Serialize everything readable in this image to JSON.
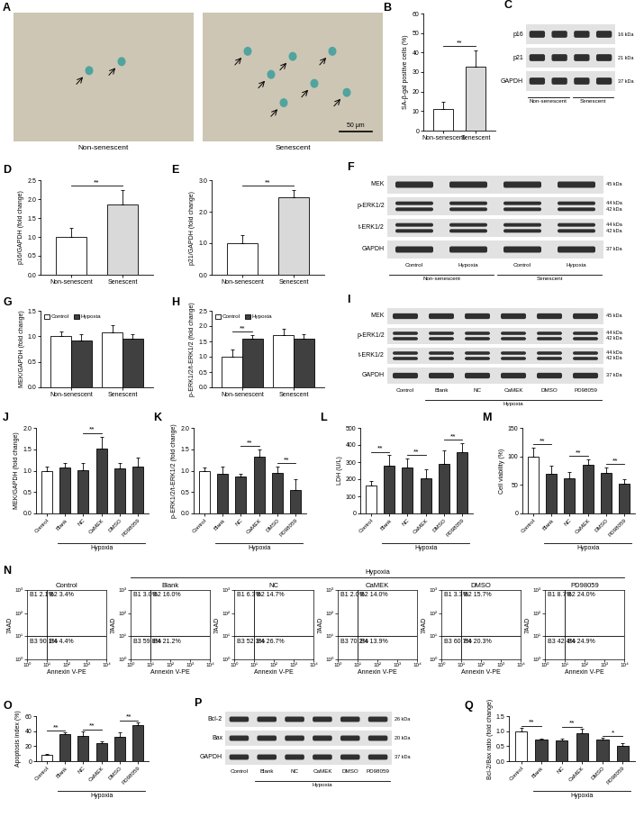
{
  "chart_data": [
    {
      "panel": "B",
      "type": "bar",
      "y_label": "SA-β-gal positive cells (%)",
      "categories": [
        "Non-senescent",
        "Senescent"
      ],
      "values": [
        11,
        33
      ],
      "errors": [
        4,
        8
      ],
      "colors": [
        "#ffffff",
        "#d9d9d9"
      ],
      "ylim": [
        0,
        60
      ],
      "yticks": [
        0,
        10,
        20,
        30,
        40,
        50,
        60
      ],
      "significance": [
        {
          "from": 0,
          "to": 1,
          "label": "**"
        }
      ]
    },
    {
      "panel": "D",
      "type": "bar",
      "y_label": "p16/GAPDH (fold change)",
      "categories": [
        "Non-senescent",
        "Senescent"
      ],
      "values": [
        1.0,
        1.85
      ],
      "errors": [
        0.25,
        0.4
      ],
      "colors": [
        "#ffffff",
        "#d9d9d9"
      ],
      "ylim": [
        0,
        2.5
      ],
      "yticks": [
        {
          "value": 0,
          "label": "0.0"
        },
        0.5,
        {
          "value": 1,
          "label": "1.0"
        },
        1.5,
        {
          "value": 2,
          "label": "2.0"
        },
        2.5
      ],
      "significance": [
        {
          "from": 0,
          "to": 1,
          "label": "**"
        }
      ]
    },
    {
      "panel": "E",
      "type": "bar",
      "y_label": "p21/GAPDH (fold change)",
      "categories": [
        "Non-senescent",
        "Senescent"
      ],
      "values": [
        1.0,
        2.45
      ],
      "errors": [
        0.25,
        0.25
      ],
      "colors": [
        "#ffffff",
        "#d9d9d9"
      ],
      "ylim": [
        0,
        3
      ],
      "yticks": [
        {
          "value": 0,
          "label": "0.0"
        },
        {
          "value": 1,
          "label": "1.0"
        },
        {
          "value": 2,
          "label": "2.0"
        },
        {
          "value": 3,
          "label": "3.0"
        }
      ],
      "significance": [
        {
          "from": 0,
          "to": 1,
          "label": "**"
        }
      ]
    },
    {
      "panel": "G",
      "type": "bar",
      "y_label": "MEK/GAPDH (fold change)",
      "categories": [
        "Non-senescent",
        "Senescent"
      ],
      "series": [
        {
          "name": "Control",
          "color": "#ffffff",
          "values": [
            1.0,
            1.07
          ],
          "errors": [
            0.1,
            0.15
          ]
        },
        {
          "name": "Hypoxia",
          "color": "#404040",
          "values": [
            0.92,
            0.95
          ],
          "errors": [
            0.12,
            0.1
          ]
        }
      ],
      "legend": "upper left",
      "ylim": [
        0,
        1.5
      ],
      "yticks": [
        {
          "value": 0,
          "label": "0.0"
        },
        0.5,
        {
          "value": 1,
          "label": "1.0"
        },
        1.5
      ]
    },
    {
      "panel": "H",
      "type": "bar",
      "y_label": "p-ERK1/2/t-ERK1/2 (fold change)",
      "categories": [
        "Non-senescent",
        "Senescent"
      ],
      "series": [
        {
          "name": "Control",
          "color": "#ffffff",
          "values": [
            1.0,
            1.72
          ],
          "errors": [
            0.25,
            0.2
          ]
        },
        {
          "name": "Hypoxia",
          "color": "#404040",
          "values": [
            1.6,
            1.6
          ],
          "errors": [
            0.12,
            0.15
          ]
        }
      ],
      "legend": "upper left",
      "ylim": [
        0,
        2.5
      ],
      "yticks": [
        {
          "value": 0,
          "label": "0.0"
        },
        0.5,
        {
          "value": 1,
          "label": "1.0"
        },
        1.5,
        {
          "value": 2,
          "label": "2.0"
        },
        2.5
      ],
      "significance": [
        {
          "category": "Non-senescent",
          "label": "**"
        }
      ]
    },
    {
      "panel": "J",
      "type": "bar",
      "y_label": "MEK/GAPDH (fold change)",
      "categories": [
        "Control",
        "Blank",
        "NC",
        "CaMEK",
        "DMSO",
        "PD98059"
      ],
      "values": [
        1.0,
        1.08,
        1.02,
        1.52,
        1.05,
        1.1
      ],
      "errors": [
        0.1,
        0.1,
        0.15,
        0.28,
        0.12,
        0.2
      ],
      "colors": [
        "#ffffff",
        "#404040",
        "#404040",
        "#404040",
        "#404040",
        "#404040"
      ],
      "ylim": [
        0,
        2
      ],
      "yticks": [
        {
          "value": 0,
          "label": "0.0"
        },
        0.5,
        {
          "value": 1,
          "label": "1.0"
        },
        1.5,
        {
          "value": 2,
          "label": "2.0"
        }
      ],
      "group_label": {
        "text": "Hypoxia",
        "from": 1,
        "to": 5
      },
      "significance": [
        {
          "from": 2,
          "to": 3,
          "label": "**"
        }
      ]
    },
    {
      "panel": "K",
      "type": "bar",
      "y_label": "p-ERK1/2/t-ERK1/2 (fold change)",
      "categories": [
        "Control",
        "Blank",
        "NC",
        "CaMEK",
        "DMSO",
        "PD98059"
      ],
      "values": [
        1.0,
        0.92,
        0.86,
        1.32,
        0.95,
        0.55
      ],
      "errors": [
        0.07,
        0.18,
        0.07,
        0.18,
        0.15,
        0.25
      ],
      "colors": [
        "#ffffff",
        "#404040",
        "#404040",
        "#404040",
        "#404040",
        "#404040"
      ],
      "ylim": [
        0,
        2
      ],
      "yticks": [
        {
          "value": 0,
          "label": "0.0"
        },
        0.5,
        {
          "value": 1,
          "label": "1.0"
        },
        1.5,
        {
          "value": 2,
          "label": "2.0"
        }
      ],
      "group_label": {
        "text": "Hypoxia",
        "from": 1,
        "to": 5
      },
      "significance": [
        {
          "from": 2,
          "to": 3,
          "label": "**"
        },
        {
          "from": 4,
          "to": 5,
          "label": "**"
        }
      ]
    },
    {
      "panel": "L",
      "type": "bar",
      "y_label": "LDH (U/L)",
      "categories": [
        "Control",
        "Blank",
        "NC",
        "CaMEK",
        "DMSO",
        "PD98059"
      ],
      "values": [
        165,
        280,
        270,
        205,
        290,
        360
      ],
      "errors": [
        25,
        60,
        50,
        55,
        80,
        50
      ],
      "colors": [
        "#ffffff",
        "#404040",
        "#404040",
        "#404040",
        "#404040",
        "#404040"
      ],
      "ylim": [
        0,
        500
      ],
      "yticks": [
        0,
        100,
        200,
        300,
        400,
        500
      ],
      "group_label": {
        "text": "Hypoxia",
        "from": 1,
        "to": 5
      },
      "significance": [
        {
          "from": 0,
          "to": 1,
          "label": "**"
        },
        {
          "from": 2,
          "to": 3,
          "label": "**"
        },
        {
          "from": 4,
          "to": 5,
          "label": "**"
        }
      ]
    },
    {
      "panel": "M",
      "type": "bar",
      "y_label": "Cell viability (%)",
      "categories": [
        "Control",
        "Blank",
        "NC",
        "CaMEK",
        "DMSO",
        "PD98059"
      ],
      "values": [
        100,
        70,
        62,
        85,
        71,
        52
      ],
      "errors": [
        15,
        13,
        10,
        10,
        10,
        8
      ],
      "colors": [
        "#ffffff",
        "#404040",
        "#404040",
        "#404040",
        "#404040",
        "#404040"
      ],
      "ylim": [
        0,
        150
      ],
      "yticks": [
        0,
        50,
        100,
        150
      ],
      "group_label": {
        "text": "Hypoxia",
        "from": 1,
        "to": 5
      },
      "significance": [
        {
          "from": 0,
          "to": 1,
          "label": "**"
        },
        {
          "from": 2,
          "to": 3,
          "label": "**"
        },
        {
          "from": 4,
          "to": 5,
          "label": "**"
        }
      ]
    },
    {
      "panel": "O",
      "type": "bar",
      "y_label": "Apoptosis index (%)",
      "categories": [
        "Control",
        "Blank",
        "NC",
        "CaMEK",
        "DMSO",
        "PD98059"
      ],
      "values": [
        8,
        36,
        34,
        24,
        33,
        48
      ],
      "errors": [
        2,
        2,
        6,
        3,
        5,
        4
      ],
      "colors": [
        "#ffffff",
        "#404040",
        "#404040",
        "#404040",
        "#404040",
        "#404040"
      ],
      "ylim": [
        0,
        60
      ],
      "yticks": [
        0,
        20,
        40,
        60
      ],
      "group_label": {
        "text": "Hypoxia",
        "from": 1,
        "to": 5
      },
      "significance": [
        {
          "from": 0,
          "to": 1,
          "label": "**"
        },
        {
          "from": 2,
          "to": 3,
          "label": "**"
        },
        {
          "from": 4,
          "to": 5,
          "label": "**"
        }
      ]
    },
    {
      "panel": "Q",
      "type": "bar",
      "y_label": "Bcl-2/Bax ratio (fold change)",
      "categories": [
        "Control",
        "Blank",
        "NC",
        "CaMEK",
        "DMSO",
        "PD98059"
      ],
      "values": [
        1.0,
        0.72,
        0.68,
        0.94,
        0.72,
        0.5
      ],
      "errors": [
        0.12,
        0.03,
        0.08,
        0.15,
        0.06,
        0.1
      ],
      "colors": [
        "#ffffff",
        "#404040",
        "#404040",
        "#404040",
        "#404040",
        "#404040"
      ],
      "ylim": [
        0,
        1.5
      ],
      "yticks": [
        {
          "value": 0,
          "label": "0.0"
        },
        0.5,
        {
          "value": 1,
          "label": "1.0"
        },
        1.5
      ],
      "group_label": {
        "text": "Hypoxia",
        "from": 1,
        "to": 5
      },
      "significance": [
        {
          "from": 0,
          "to": 1,
          "label": "**"
        },
        {
          "from": 2,
          "to": 3,
          "label": "**"
        },
        {
          "from": 4,
          "to": 5,
          "label": "*"
        }
      ]
    }
  ],
  "micrographs": {
    "panel": "A",
    "images": [
      {
        "label": "Non-senescent"
      },
      {
        "label": "Senescent"
      }
    ],
    "scale_bar": "50 μm"
  },
  "blots": [
    {
      "panel": "C",
      "lanes": [
        null,
        null,
        null,
        null
      ],
      "rows": [
        {
          "name": "p16",
          "kda": [
            "16 kDa"
          ]
        },
        {
          "name": "p21",
          "kda": [
            "21 kDa"
          ]
        },
        {
          "name": "GAPDH",
          "kda": [
            "37 kDa"
          ]
        }
      ],
      "groups": [
        {
          "label": "Non-senescent",
          "from": 0,
          "to": 1
        },
        {
          "label": "Senescent",
          "from": 2,
          "to": 3
        }
      ]
    },
    {
      "panel": "F",
      "lanes": [
        "Control",
        "Hypoxia",
        "Control",
        "Hypoxia"
      ],
      "rows": [
        {
          "name": "MEK",
          "kda": [
            "45 kDa"
          ]
        },
        {
          "name": "p-ERK1/2",
          "kda": [
            "44 kDa",
            "42 kDa"
          ]
        },
        {
          "name": "t-ERK1/2",
          "kda": [
            "44 kDa",
            "42 kDa"
          ]
        },
        {
          "name": "GAPDH",
          "kda": [
            "37 kDa"
          ]
        }
      ],
      "groups": [
        {
          "label": "Non-senescent",
          "from": 0,
          "to": 1
        },
        {
          "label": "Senescent",
          "from": 2,
          "to": 3
        }
      ]
    },
    {
      "panel": "I",
      "lanes": [
        "Control",
        "Blank",
        "NC",
        "CaMEK",
        "DMSO",
        "PD98059"
      ],
      "rows": [
        {
          "name": "MEK",
          "kda": [
            "45 kDa"
          ]
        },
        {
          "name": "p-ERK1/2",
          "kda": [
            "44 kDa",
            "42 kDa"
          ]
        },
        {
          "name": "t-ERK1/2",
          "kda": [
            "44 kDa",
            "42 kDa"
          ]
        },
        {
          "name": "GAPDH",
          "kda": [
            "37 kDa"
          ]
        }
      ],
      "groups": [
        {
          "label": "Hypoxia",
          "from": 1,
          "to": 5
        }
      ]
    },
    {
      "panel": "P",
      "lanes": [
        "Control",
        "Blank",
        "NC",
        "CaMEK",
        "DMSO",
        "PD98059"
      ],
      "rows": [
        {
          "name": "Bcl-2",
          "kda": [
            "26 kDa"
          ]
        },
        {
          "name": "Bax",
          "kda": [
            "20 kDa"
          ]
        },
        {
          "name": "GAPDH",
          "kda": [
            "37 kDa"
          ]
        }
      ],
      "groups": [
        {
          "label": "Hypoxia",
          "from": 1,
          "to": 5
        }
      ]
    }
  ],
  "flow_cytometry": {
    "panel": "N",
    "group_label": {
      "text": "Hypoxia",
      "from": 1,
      "to": 5
    },
    "x_label": "Annexin V-PE",
    "y_label": "7AAD",
    "log": true,
    "xlim": [
      1,
      10000
    ],
    "ylim": [
      1,
      1000
    ],
    "xticks": [
      {
        "value": 1,
        "label": "10⁰"
      },
      {
        "value": 10,
        "label": "10¹"
      },
      {
        "value": 100,
        "label": "10²"
      },
      {
        "value": 1000,
        "label": "10³"
      },
      {
        "value": 10000,
        "label": "10⁴"
      }
    ],
    "yticks": [
      {
        "value": 1,
        "label": "10⁰"
      },
      {
        "value": 10,
        "label": "10¹"
      },
      {
        "value": 100,
        "label": "10²"
      },
      {
        "value": 1000,
        "label": "10³"
      }
    ],
    "gate": {
      "x": 10,
      "y": 10
    },
    "plots": [
      {
        "title": "Control",
        "quadrants": [
          {
            "name": "B1",
            "label": "2.1%"
          },
          {
            "name": "B2",
            "label": "3.4%"
          },
          {
            "name": "B3",
            "label": "90.1%"
          },
          {
            "name": "B4",
            "label": "4.4%"
          }
        ]
      },
      {
        "title": "Blank",
        "quadrants": [
          {
            "name": "B1",
            "label": "3.0%"
          },
          {
            "name": "B2",
            "label": "16.0%"
          },
          {
            "name": "B3",
            "label": "59.8%"
          },
          {
            "name": "B4",
            "label": "21.2%"
          }
        ]
      },
      {
        "title": "NC",
        "quadrants": [
          {
            "name": "B1",
            "label": "6.3%"
          },
          {
            "name": "B2",
            "label": "14.7%"
          },
          {
            "name": "B3",
            "label": "52.3%"
          },
          {
            "name": "B4",
            "label": "26.7%"
          }
        ]
      },
      {
        "title": "CaMEK",
        "quadrants": [
          {
            "name": "B1",
            "label": "2.0%"
          },
          {
            "name": "B2",
            "label": "14.0%"
          },
          {
            "name": "B3",
            "label": "70.2%"
          },
          {
            "name": "B4",
            "label": "13.9%"
          }
        ]
      },
      {
        "title": "DMSO",
        "quadrants": [
          {
            "name": "B1",
            "label": "3.3%"
          },
          {
            "name": "B2",
            "label": "15.7%"
          },
          {
            "name": "B3",
            "label": "60.7%"
          },
          {
            "name": "B4",
            "label": "20.3%"
          }
        ]
      },
      {
        "title": "PD98059",
        "quadrants": [
          {
            "name": "B1",
            "label": "8.7%"
          },
          {
            "name": "B2",
            "label": "24.0%"
          },
          {
            "name": "B3",
            "label": "42.4%"
          },
          {
            "name": "B4",
            "label": "24.9%"
          }
        ]
      }
    ]
  }
}
